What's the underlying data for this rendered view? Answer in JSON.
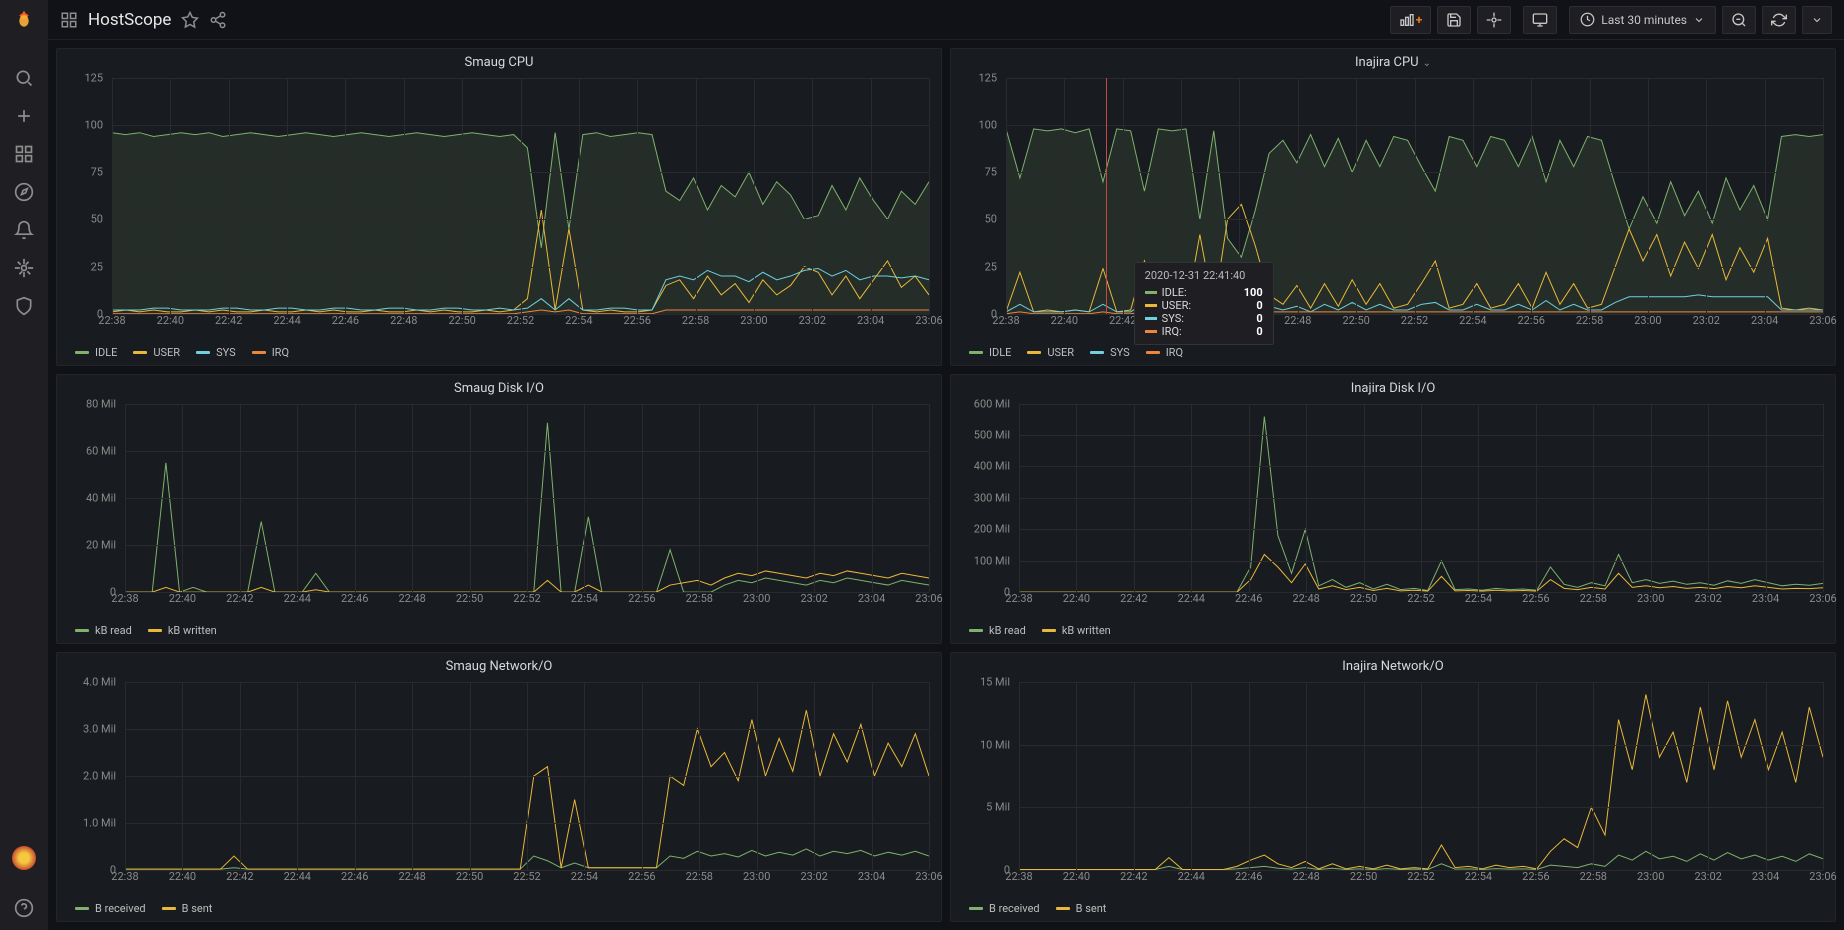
{
  "dashboard_title": "HostScope",
  "time_range": "Last 30 minutes",
  "x_ticks": [
    "22:38",
    "22:40",
    "22:42",
    "22:44",
    "22:46",
    "22:48",
    "22:50",
    "22:52",
    "22:54",
    "22:56",
    "22:58",
    "23:00",
    "23:02",
    "23:04",
    "23:06"
  ],
  "colors": {
    "idle": "#7eb26d",
    "user": "#eab839",
    "sys": "#6ed0e0",
    "irq": "#ef843c",
    "kb_read": "#7eb26d",
    "kb_written": "#eab839",
    "b_received": "#7eb26d",
    "b_sent": "#eab839",
    "grid": "#2a2a2e",
    "background": "#181b1f",
    "page_bg": "#111217",
    "text": "#d8d9da",
    "muted": "#8a8a8a",
    "crosshair": "#c74a3f"
  },
  "panels": {
    "smaug_cpu": {
      "title": "Smaug CPU",
      "type": "line",
      "y_ticks": [
        0,
        25,
        50,
        75,
        100,
        125
      ],
      "ylim": [
        0,
        125
      ],
      "legend": [
        {
          "key": "idle",
          "label": "IDLE",
          "color": "#7eb26d"
        },
        {
          "key": "user",
          "label": "USER",
          "color": "#eab839"
        },
        {
          "key": "sys",
          "label": "SYS",
          "color": "#6ed0e0"
        },
        {
          "key": "irq",
          "label": "IRQ",
          "color": "#ef843c"
        }
      ],
      "series": {
        "idle": [
          96,
          95,
          96,
          94,
          95,
          96,
          95,
          96,
          94,
          95,
          96,
          95,
          94,
          95,
          96,
          95,
          94,
          95,
          96,
          95,
          94,
          95,
          96,
          95,
          94,
          95,
          96,
          95,
          94,
          95,
          88,
          35,
          96,
          45,
          95,
          96,
          94,
          95,
          96,
          95,
          65,
          60,
          72,
          55,
          68,
          62,
          75,
          58,
          70,
          63,
          50,
          52,
          68,
          55,
          72,
          60,
          50,
          65,
          58,
          70
        ],
        "user": [
          1,
          2,
          1,
          2,
          1,
          1,
          2,
          1,
          2,
          1,
          1,
          2,
          1,
          1,
          2,
          1,
          2,
          1,
          1,
          2,
          1,
          1,
          2,
          1,
          2,
          1,
          1,
          2,
          1,
          2,
          8,
          55,
          2,
          45,
          2,
          1,
          2,
          1,
          1,
          2,
          15,
          18,
          8,
          20,
          10,
          16,
          6,
          18,
          10,
          15,
          25,
          22,
          10,
          20,
          8,
          18,
          28,
          14,
          20,
          10
        ],
        "sys": [
          2,
          2,
          2,
          3,
          3,
          2,
          2,
          2,
          3,
          3,
          2,
          2,
          3,
          3,
          2,
          2,
          3,
          3,
          2,
          2,
          3,
          3,
          2,
          2,
          3,
          3,
          2,
          2,
          3,
          2,
          3,
          8,
          2,
          8,
          2,
          2,
          3,
          3,
          2,
          2,
          18,
          20,
          18,
          23,
          20,
          20,
          17,
          22,
          18,
          20,
          23,
          24,
          20,
          23,
          18,
          20,
          20,
          19,
          20,
          18
        ],
        "irq": [
          0,
          0,
          0,
          0,
          0,
          0,
          0,
          0,
          0,
          0,
          0,
          0,
          0,
          0,
          0,
          0,
          0,
          0,
          0,
          0,
          0,
          0,
          0,
          0,
          0,
          0,
          0,
          0,
          0,
          0,
          1,
          2,
          1,
          2,
          0,
          0,
          0,
          0,
          0,
          0,
          2,
          2,
          2,
          2,
          2,
          2,
          2,
          2,
          2,
          2,
          2,
          2,
          2,
          2,
          2,
          2,
          2,
          2,
          2,
          2
        ]
      }
    },
    "inajira_cpu": {
      "title": "Inajira CPU",
      "type": "line",
      "y_ticks": [
        0,
        25,
        50,
        75,
        100,
        125
      ],
      "ylim": [
        0,
        125
      ],
      "has_dropdown": true,
      "legend": [
        {
          "key": "idle",
          "label": "IDLE",
          "color": "#7eb26d"
        },
        {
          "key": "user",
          "label": "USER",
          "color": "#eab839"
        },
        {
          "key": "sys",
          "label": "SYS",
          "color": "#6ed0e0"
        },
        {
          "key": "irq",
          "label": "IRQ",
          "color": "#ef843c"
        }
      ],
      "series": {
        "idle": [
          98,
          72,
          98,
          97,
          98,
          96,
          98,
          70,
          98,
          97,
          65,
          98,
          97,
          98,
          50,
          97,
          40,
          30,
          55,
          85,
          92,
          80,
          95,
          78,
          93,
          75,
          92,
          78,
          94,
          92,
          78,
          65,
          94,
          92,
          78,
          94,
          92,
          78,
          94,
          70,
          92,
          78,
          94,
          92,
          68,
          45,
          62,
          48,
          70,
          52,
          65,
          48,
          72,
          55,
          68,
          50,
          94,
          95,
          94,
          95
        ],
        "user": [
          1,
          22,
          1,
          2,
          1,
          2,
          1,
          24,
          1,
          2,
          28,
          1,
          2,
          1,
          42,
          2,
          50,
          58,
          36,
          10,
          5,
          15,
          3,
          16,
          4,
          18,
          5,
          16,
          3,
          5,
          16,
          28,
          3,
          5,
          16,
          3,
          5,
          16,
          3,
          22,
          5,
          16,
          3,
          5,
          25,
          45,
          28,
          42,
          20,
          38,
          24,
          42,
          18,
          35,
          22,
          40,
          3,
          2,
          3,
          2
        ],
        "sys": [
          1,
          5,
          1,
          1,
          1,
          2,
          1,
          5,
          1,
          1,
          6,
          1,
          1,
          1,
          7,
          1,
          9,
          11,
          8,
          4,
          2,
          4,
          1,
          5,
          2,
          6,
          2,
          5,
          2,
          2,
          5,
          6,
          2,
          2,
          5,
          2,
          2,
          5,
          2,
          7,
          2,
          5,
          2,
          2,
          6,
          9,
          9,
          9,
          9,
          9,
          10,
          9,
          9,
          9,
          9,
          9,
          2,
          2,
          2,
          2
        ],
        "irq": [
          0,
          1,
          0,
          0,
          0,
          0,
          0,
          1,
          0,
          0,
          1,
          0,
          0,
          0,
          1,
          0,
          1,
          1,
          1,
          1,
          1,
          1,
          1,
          1,
          1,
          1,
          1,
          1,
          1,
          1,
          1,
          1,
          1,
          1,
          1,
          1,
          1,
          1,
          1,
          1,
          1,
          1,
          1,
          1,
          1,
          1,
          1,
          1,
          1,
          1,
          1,
          1,
          1,
          1,
          1,
          1,
          1,
          1,
          1,
          1
        ]
      },
      "tooltip": {
        "timestamp": "2020-12-31 22:41:40",
        "position_pct": 12.2,
        "rows": [
          {
            "label": "IDLE:",
            "value": "100",
            "color": "#7eb26d"
          },
          {
            "label": "USER:",
            "value": "0",
            "color": "#eab839"
          },
          {
            "label": "SYS:",
            "value": "0",
            "color": "#6ed0e0"
          },
          {
            "label": "IRQ:",
            "value": "0",
            "color": "#ef843c"
          }
        ]
      }
    },
    "smaug_disk": {
      "title": "Smaug Disk I/O",
      "type": "line",
      "y_ticks": [
        "0",
        "20 Mil",
        "40 Mil",
        "60 Mil",
        "80 Mil"
      ],
      "ylim": [
        0,
        80
      ],
      "legend": [
        {
          "key": "kb_read",
          "label": "kB read",
          "color": "#7eb26d"
        },
        {
          "key": "kb_written",
          "label": "kB written",
          "color": "#eab839"
        }
      ],
      "series": {
        "kb_read": [
          0,
          0,
          0,
          55,
          0,
          2,
          0,
          0,
          0,
          0,
          30,
          0,
          0,
          0,
          8,
          0,
          0,
          0,
          0,
          0,
          0,
          0,
          0,
          0,
          0,
          0,
          0,
          0,
          0,
          0,
          0,
          72,
          0,
          0,
          32,
          0,
          0,
          0,
          0,
          0,
          18,
          0,
          0,
          0,
          3,
          5,
          4,
          6,
          5,
          4,
          3,
          5,
          4,
          6,
          5,
          4,
          3,
          5,
          4,
          3
        ],
        "kb_written": [
          0,
          0,
          0,
          2,
          0,
          0,
          0,
          0,
          0,
          0,
          2,
          0,
          0,
          0,
          1,
          0,
          0,
          0,
          0,
          0,
          0,
          0,
          0,
          0,
          0,
          0,
          0,
          0,
          0,
          0,
          0,
          5,
          0,
          0,
          3,
          0,
          0,
          0,
          0,
          0,
          3,
          4,
          5,
          3,
          6,
          8,
          7,
          9,
          8,
          7,
          6,
          8,
          7,
          9,
          8,
          7,
          6,
          8,
          7,
          6
        ]
      }
    },
    "inajira_disk": {
      "title": "Inajira Disk I/O",
      "type": "line",
      "y_ticks": [
        "0",
        "100 Mil",
        "200 Mil",
        "300 Mil",
        "400 Mil",
        "500 Mil",
        "600 Mil"
      ],
      "ylim": [
        0,
        600
      ],
      "legend": [
        {
          "key": "kb_read",
          "label": "kB read",
          "color": "#7eb26d"
        },
        {
          "key": "kb_written",
          "label": "kB written",
          "color": "#eab839"
        }
      ],
      "series": {
        "kb_read": [
          0,
          0,
          0,
          0,
          0,
          0,
          0,
          0,
          0,
          0,
          0,
          0,
          0,
          0,
          0,
          0,
          0,
          80,
          560,
          180,
          60,
          200,
          20,
          40,
          15,
          30,
          10,
          25,
          8,
          12,
          5,
          100,
          8,
          10,
          6,
          12,
          8,
          10,
          6,
          80,
          25,
          15,
          30,
          20,
          120,
          30,
          40,
          28,
          35,
          25,
          30,
          22,
          36,
          28,
          40,
          30,
          20,
          25,
          22,
          28
        ],
        "kb_written": [
          0,
          0,
          0,
          0,
          0,
          0,
          0,
          0,
          0,
          0,
          0,
          0,
          0,
          0,
          0,
          0,
          0,
          40,
          120,
          80,
          30,
          90,
          10,
          20,
          8,
          15,
          5,
          12,
          4,
          6,
          3,
          50,
          4,
          5,
          3,
          6,
          4,
          5,
          3,
          40,
          12,
          8,
          15,
          10,
          60,
          15,
          20,
          14,
          18,
          12,
          15,
          11,
          18,
          14,
          20,
          15,
          10,
          12,
          11,
          14
        ]
      }
    },
    "smaug_net": {
      "title": "Smaug Network/O",
      "type": "line",
      "y_ticks": [
        "0",
        "1.0 Mil",
        "2.0 Mil",
        "3.0 Mil",
        "4.0 Mil"
      ],
      "ylim": [
        0,
        4
      ],
      "legend": [
        {
          "key": "b_received",
          "label": "B received",
          "color": "#7eb26d"
        },
        {
          "key": "b_sent",
          "label": "B sent",
          "color": "#eab839"
        }
      ],
      "series": {
        "b_received": [
          0.02,
          0.02,
          0.02,
          0.02,
          0.02,
          0.02,
          0.02,
          0.02,
          0.05,
          0.02,
          0.02,
          0.02,
          0.02,
          0.02,
          0.02,
          0.02,
          0.02,
          0.02,
          0.02,
          0.02,
          0.02,
          0.02,
          0.02,
          0.02,
          0.02,
          0.02,
          0.02,
          0.02,
          0.02,
          0.02,
          0.3,
          0.2,
          0.05,
          0.15,
          0.05,
          0.05,
          0.05,
          0.05,
          0.05,
          0.05,
          0.3,
          0.25,
          0.4,
          0.3,
          0.35,
          0.28,
          0.42,
          0.3,
          0.38,
          0.32,
          0.45,
          0.3,
          0.4,
          0.35,
          0.42,
          0.3,
          0.38,
          0.32,
          0.4,
          0.3
        ],
        "b_sent": [
          0.02,
          0.02,
          0.02,
          0.02,
          0.02,
          0.02,
          0.02,
          0.02,
          0.3,
          0.02,
          0.02,
          0.02,
          0.02,
          0.02,
          0.02,
          0.02,
          0.02,
          0.02,
          0.02,
          0.02,
          0.02,
          0.02,
          0.02,
          0.02,
          0.02,
          0.02,
          0.02,
          0.02,
          0.02,
          0.02,
          2.0,
          2.2,
          0.05,
          1.5,
          0.05,
          0.05,
          0.05,
          0.05,
          0.05,
          0.05,
          2.0,
          1.8,
          3.0,
          2.2,
          2.5,
          1.9,
          3.2,
          2.0,
          2.8,
          2.1,
          3.4,
          2.0,
          2.9,
          2.3,
          3.1,
          2.0,
          2.7,
          2.2,
          2.9,
          2.0
        ]
      }
    },
    "inajira_net": {
      "title": "Inajira Network/O",
      "type": "line",
      "y_ticks": [
        "0",
        "5 Mil",
        "10 Mil",
        "15 Mil"
      ],
      "ylim": [
        0,
        15
      ],
      "legend": [
        {
          "key": "b_received",
          "label": "B received",
          "color": "#7eb26d"
        },
        {
          "key": "b_sent",
          "label": "B sent",
          "color": "#eab839"
        }
      ],
      "series": {
        "b_received": [
          0.05,
          0.05,
          0.05,
          0.05,
          0.05,
          0.05,
          0.05,
          0.05,
          0.05,
          0.05,
          0.05,
          0.3,
          0.05,
          0.05,
          0.05,
          0.05,
          0.1,
          0.2,
          0.3,
          0.15,
          0.08,
          0.2,
          0.05,
          0.15,
          0.05,
          0.1,
          0.05,
          0.12,
          0.05,
          0.08,
          0.05,
          0.5,
          0.08,
          0.1,
          0.05,
          0.12,
          0.08,
          0.1,
          0.05,
          0.4,
          0.3,
          0.2,
          0.5,
          0.3,
          1.2,
          0.8,
          1.5,
          0.9,
          1.1,
          0.7,
          1.3,
          0.8,
          1.4,
          0.9,
          1.2,
          0.8,
          1.1,
          0.7,
          1.3,
          0.9
        ],
        "b_sent": [
          0.05,
          0.05,
          0.05,
          0.05,
          0.05,
          0.05,
          0.05,
          0.05,
          0.05,
          0.05,
          0.05,
          1.0,
          0.05,
          0.05,
          0.05,
          0.05,
          0.3,
          0.8,
          1.2,
          0.5,
          0.2,
          0.7,
          0.1,
          0.5,
          0.1,
          0.3,
          0.1,
          0.4,
          0.1,
          0.2,
          0.1,
          2.0,
          0.2,
          0.3,
          0.1,
          0.4,
          0.2,
          0.3,
          0.1,
          1.5,
          2.5,
          1.8,
          5.0,
          2.8,
          12,
          8,
          14,
          9,
          11,
          7,
          13,
          8,
          13.5,
          9,
          12,
          8,
          11,
          7,
          13,
          9
        ]
      }
    }
  }
}
